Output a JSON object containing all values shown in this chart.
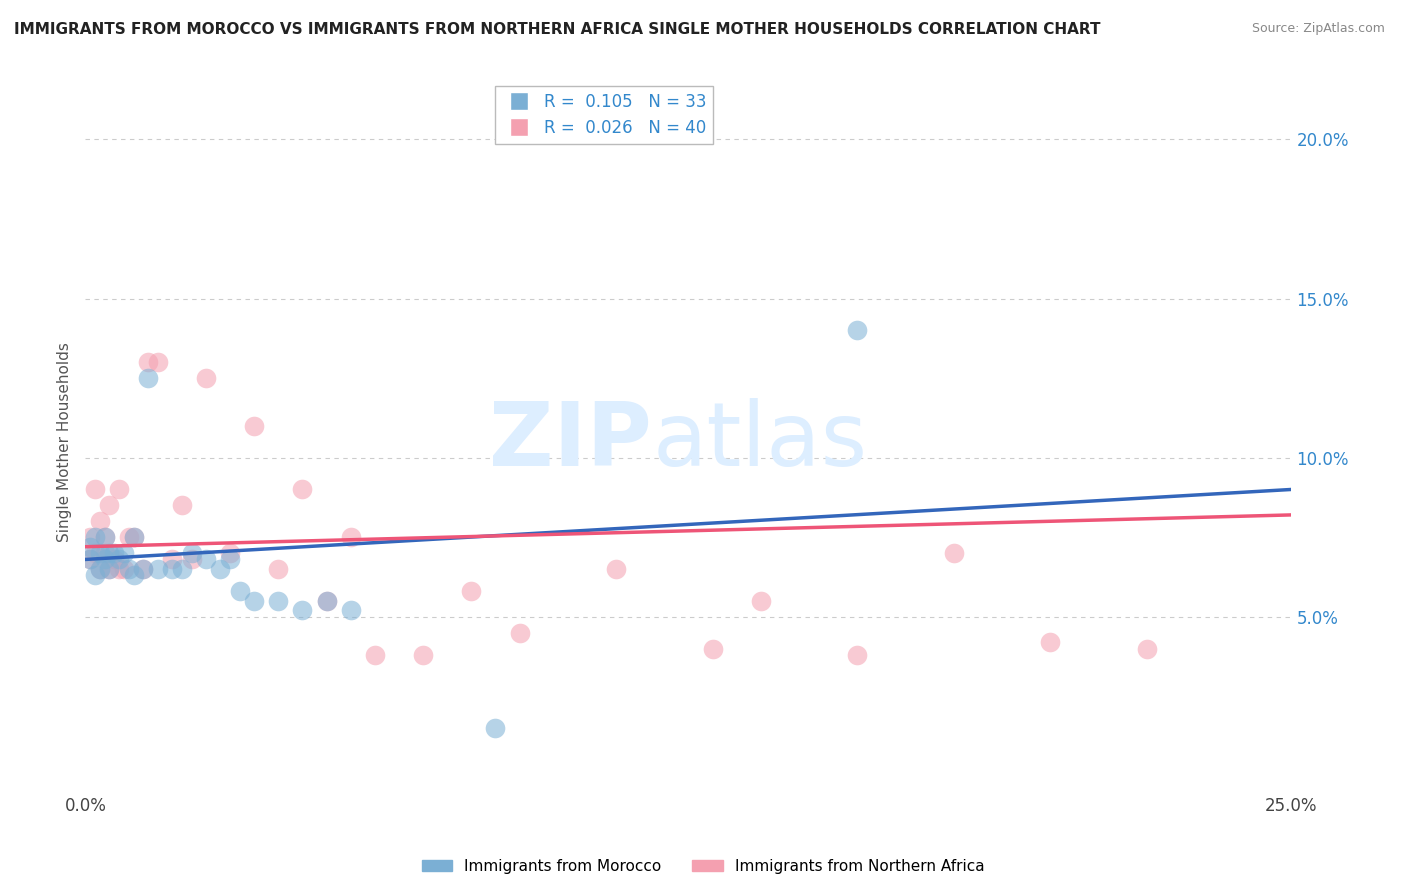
{
  "title": "IMMIGRANTS FROM MOROCCO VS IMMIGRANTS FROM NORTHERN AFRICA SINGLE MOTHER HOUSEHOLDS CORRELATION CHART",
  "source": "Source: ZipAtlas.com",
  "ylabel": "Single Mother Households",
  "xlim": [
    0.0,
    0.25
  ],
  "ylim": [
    -0.005,
    0.215
  ],
  "yticks": [
    0.05,
    0.1,
    0.15,
    0.2
  ],
  "ytick_labels": [
    "5.0%",
    "10.0%",
    "15.0%",
    "20.0%"
  ],
  "color_morocco": "#7BAFD4",
  "color_northern": "#F4A0B0",
  "color_line_morocco": "#3366BB",
  "color_line_northern": "#EE5577",
  "morocco_x": [
    0.001,
    0.001,
    0.002,
    0.002,
    0.003,
    0.003,
    0.004,
    0.004,
    0.005,
    0.005,
    0.006,
    0.007,
    0.008,
    0.009,
    0.01,
    0.01,
    0.012,
    0.013,
    0.015,
    0.018,
    0.02,
    0.022,
    0.025,
    0.028,
    0.03,
    0.032,
    0.035,
    0.04,
    0.045,
    0.05,
    0.055,
    0.085,
    0.16
  ],
  "morocco_y": [
    0.072,
    0.068,
    0.075,
    0.063,
    0.07,
    0.065,
    0.075,
    0.068,
    0.07,
    0.065,
    0.07,
    0.068,
    0.07,
    0.065,
    0.075,
    0.063,
    0.065,
    0.125,
    0.065,
    0.065,
    0.065,
    0.07,
    0.068,
    0.065,
    0.068,
    0.058,
    0.055,
    0.055,
    0.052,
    0.055,
    0.052,
    0.015,
    0.14
  ],
  "northern_x": [
    0.001,
    0.001,
    0.002,
    0.002,
    0.003,
    0.003,
    0.004,
    0.004,
    0.005,
    0.005,
    0.006,
    0.007,
    0.007,
    0.008,
    0.009,
    0.01,
    0.012,
    0.013,
    0.015,
    0.018,
    0.02,
    0.022,
    0.025,
    0.03,
    0.035,
    0.04,
    0.045,
    0.05,
    0.055,
    0.06,
    0.07,
    0.08,
    0.09,
    0.11,
    0.13,
    0.14,
    0.16,
    0.18,
    0.2,
    0.22
  ],
  "northern_y": [
    0.075,
    0.068,
    0.07,
    0.09,
    0.065,
    0.08,
    0.075,
    0.07,
    0.085,
    0.065,
    0.068,
    0.065,
    0.09,
    0.065,
    0.075,
    0.075,
    0.065,
    0.13,
    0.13,
    0.068,
    0.085,
    0.068,
    0.125,
    0.07,
    0.11,
    0.065,
    0.09,
    0.055,
    0.075,
    0.038,
    0.038,
    0.058,
    0.045,
    0.065,
    0.04,
    0.055,
    0.038,
    0.07,
    0.042,
    0.04
  ],
  "watermark_zip": "ZIP",
  "watermark_atlas": "atlas",
  "background_color": "#FFFFFF",
  "grid_color": "#CCCCCC"
}
